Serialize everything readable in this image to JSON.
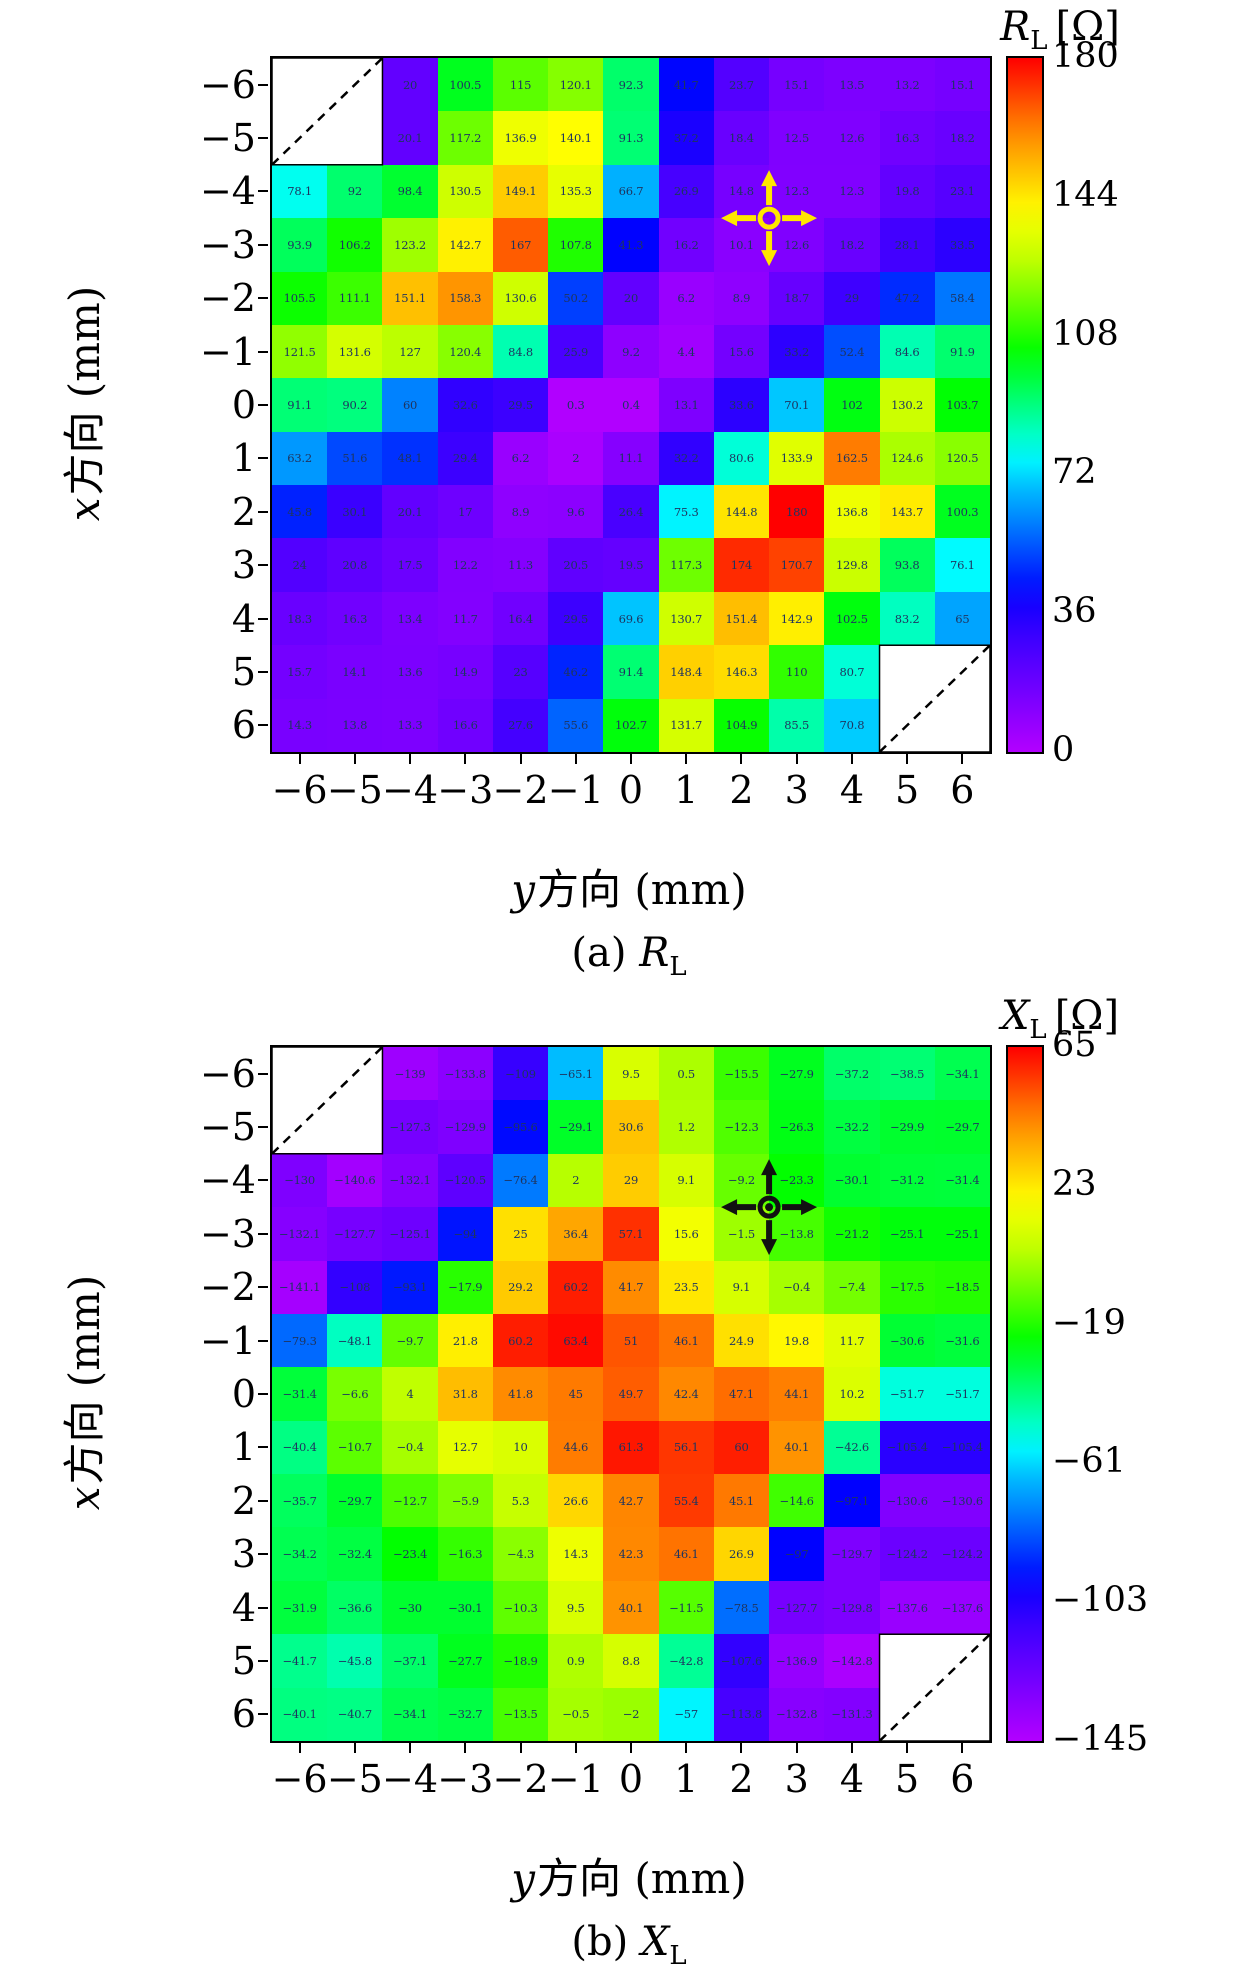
{
  "page": {
    "background": "#ffffff"
  },
  "colors": {
    "annotation_text": "#1e3560",
    "axis": "#000000",
    "marker_a": "#ffe600",
    "marker_b": "#111111"
  },
  "chart_data": [
    {
      "type": "heatmap",
      "name": "a",
      "title": "R_L [Ohm]",
      "title_parts": {
        "symbol": "R",
        "sub": "L",
        "unit": "[Ω]"
      },
      "caption_parts": {
        "prefix": "(a) ",
        "symbol": "R",
        "sub": "L"
      },
      "xlabel_parts": {
        "var": "y",
        "rest": "方向 (mm)"
      },
      "ylabel_parts": {
        "var": "x",
        "rest": "方向 (mm)"
      },
      "x": [
        -6,
        -5,
        -4,
        -3,
        -2,
        -1,
        0,
        1,
        2,
        3,
        4,
        5,
        6
      ],
      "y": [
        -6,
        -5,
        -4,
        -3,
        -2,
        -1,
        0,
        1,
        2,
        3,
        4,
        5,
        6
      ],
      "vmin": 0,
      "vmax": 180,
      "colorbar_ticks": [
        180,
        144,
        108,
        72,
        36,
        0
      ],
      "colormap": "rainbow",
      "grid": false,
      "legend_position": "colorbar-right",
      "masked_boxes": [
        {
          "r0": 0,
          "r1": 1,
          "c0": 0,
          "c1": 1
        },
        {
          "r0": 11,
          "r1": 12,
          "c0": 11,
          "c1": 12
        }
      ],
      "marker": {
        "col": 2.5,
        "row": -3.5,
        "color": "#ffe600",
        "dot": false
      },
      "values": [
        [
          null,
          null,
          20,
          100.5,
          115,
          120.1,
          92.3,
          41.7,
          23.7,
          15.1,
          13.5,
          13.2,
          15.1
        ],
        [
          null,
          null,
          20.1,
          117.2,
          136.9,
          140.1,
          91.3,
          37.2,
          18.4,
          12.5,
          12.6,
          16.3,
          18.2
        ],
        [
          78.1,
          92,
          98.4,
          130.5,
          149.1,
          135.3,
          66.7,
          26.9,
          14.8,
          12.3,
          12.3,
          19.8,
          23.1
        ],
        [
          93.9,
          106.2,
          123.2,
          142.7,
          167,
          107.8,
          41.3,
          16.2,
          10.1,
          12.6,
          18.2,
          28.1,
          33.5
        ],
        [
          105.5,
          111.1,
          151.1,
          158.3,
          130.6,
          50.2,
          20,
          6.2,
          8.9,
          18.7,
          29,
          47.2,
          58.4
        ],
        [
          121.5,
          131.6,
          127,
          120.4,
          84.8,
          25.9,
          9.2,
          4.4,
          15.6,
          33.2,
          52.4,
          84.6,
          91.9
        ],
        [
          91.1,
          90.2,
          60,
          32.6,
          29.5,
          0.3,
          0.4,
          13.1,
          33.6,
          70.1,
          102,
          130.2,
          103.7
        ],
        [
          63.2,
          51.6,
          48.1,
          29.4,
          6.2,
          2,
          11.1,
          32.2,
          80.6,
          133.9,
          162.5,
          124.6,
          120.5
        ],
        [
          45.8,
          30.1,
          20.1,
          17,
          8.9,
          9.6,
          26.4,
          75.3,
          144.8,
          180,
          136.8,
          143.7,
          100.3
        ],
        [
          24,
          20.8,
          17.5,
          12.2,
          11.3,
          20.5,
          19.5,
          117.3,
          174,
          170.7,
          129.8,
          93.8,
          76.1
        ],
        [
          18.3,
          16.3,
          13.4,
          11.7,
          16.4,
          29.5,
          69.6,
          130.7,
          151.4,
          142.9,
          102.5,
          83.2,
          65
        ],
        [
          15.7,
          14.1,
          13.6,
          14.9,
          23,
          46.2,
          91.4,
          148.4,
          146.3,
          110,
          80.7,
          null,
          null
        ],
        [
          14.3,
          13.8,
          13.3,
          16.6,
          27.6,
          55.6,
          102.7,
          131.7,
          104.9,
          85.5,
          70.8,
          null,
          null
        ]
      ]
    },
    {
      "type": "heatmap",
      "name": "b",
      "title": "X_L [Ohm]",
      "title_parts": {
        "symbol": "X",
        "sub": "L",
        "unit": "[Ω]"
      },
      "caption_parts": {
        "prefix": "(b) ",
        "symbol": "X",
        "sub": "L"
      },
      "xlabel_parts": {
        "var": "y",
        "rest": "方向 (mm)"
      },
      "ylabel_parts": {
        "var": "x",
        "rest": "方向 (mm)"
      },
      "x": [
        -6,
        -5,
        -4,
        -3,
        -2,
        -1,
        0,
        1,
        2,
        3,
        4,
        5,
        6
      ],
      "y": [
        -6,
        -5,
        -4,
        -3,
        -2,
        -1,
        0,
        1,
        2,
        3,
        4,
        5,
        6
      ],
      "vmin": -145,
      "vmax": 65,
      "colorbar_ticks": [
        65,
        23,
        -19,
        -61,
        -103,
        -145
      ],
      "colormap": "rainbow",
      "grid": false,
      "legend_position": "colorbar-right",
      "masked_boxes": [
        {
          "r0": 0,
          "r1": 1,
          "c0": 0,
          "c1": 1
        },
        {
          "r0": 11,
          "r1": 12,
          "c0": 11,
          "c1": 12
        }
      ],
      "marker": {
        "col": 2.5,
        "row": -3.5,
        "color": "#111111",
        "dot": true
      },
      "values": [
        [
          null,
          null,
          -139,
          -133.8,
          -109,
          -65.1,
          9.5,
          0.5,
          -15.5,
          -27.9,
          -37.2,
          -38.5,
          -34.1
        ],
        [
          null,
          null,
          -127.3,
          -129.9,
          -95.6,
          -29.1,
          30.6,
          1.2,
          -12.3,
          -26.3,
          -32.2,
          -29.9,
          -29.7
        ],
        [
          -130,
          -140.6,
          -132.1,
          -120.5,
          -76.4,
          2,
          29,
          9.1,
          -9.2,
          -23.3,
          -30.1,
          -31.2,
          -31.4
        ],
        [
          -132.1,
          -127.7,
          -125.1,
          -94,
          25,
          36.4,
          57.1,
          15.6,
          -1.5,
          -13.8,
          -21.2,
          -25.1,
          -25.1
        ],
        [
          -141.1,
          -108,
          -93.1,
          -17.9,
          29.2,
          60.2,
          41.7,
          23.5,
          9.1,
          -0.4,
          -7.4,
          -17.5,
          -18.5
        ],
        [
          -79.3,
          -48.1,
          -9.7,
          21.8,
          60.2,
          63.4,
          51,
          46.1,
          24.9,
          19.8,
          11.7,
          -30.6,
          -31.6
        ],
        [
          -31.4,
          -6.6,
          4,
          31.8,
          41.8,
          45,
          49.7,
          42.4,
          47.1,
          44.1,
          10.2,
          -51.7,
          -51.7
        ],
        [
          -40.4,
          -10.7,
          -0.4,
          12.7,
          10,
          44.6,
          61.3,
          56.1,
          60,
          40.1,
          -42.6,
          -105.4,
          -105.4
        ],
        [
          -35.7,
          -29.7,
          -12.7,
          -5.9,
          5.3,
          26.6,
          42.7,
          55.4,
          45.1,
          -14.6,
          -97.1,
          -130.6,
          -130.6
        ],
        [
          -34.2,
          -32.4,
          -23.4,
          -16.3,
          -4.3,
          14.3,
          42.3,
          46.1,
          26.9,
          -97,
          -129.7,
          -124.2,
          -124.2
        ],
        [
          -31.9,
          -36.6,
          -30,
          -30.1,
          -10.3,
          9.5,
          40.1,
          -11.5,
          -78.5,
          -127.7,
          -129.8,
          -137.6,
          -137.6
        ],
        [
          -41.7,
          -45.8,
          -37.1,
          -27.7,
          -18.9,
          0.9,
          8.8,
          -42.8,
          -107.6,
          -136.9,
          -142.8,
          null,
          null
        ],
        [
          -40.1,
          -40.7,
          -34.1,
          -32.7,
          -13.5,
          -0.5,
          -2,
          -57,
          -113.8,
          -132.8,
          -131.3,
          null,
          null
        ]
      ]
    }
  ]
}
